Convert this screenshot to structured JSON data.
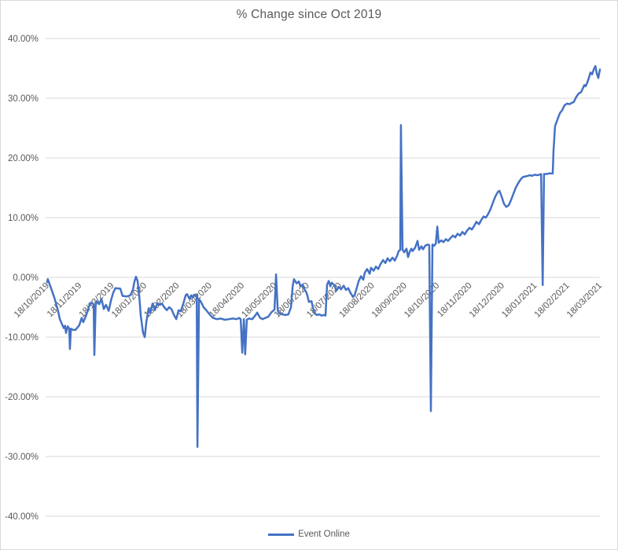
{
  "chart_data": {
    "type": "line",
    "title": "% Change since Oct 2019",
    "legend_position": "bottom",
    "grid": true,
    "colors": {
      "accent": "#4472C4",
      "gridline": "#D9D9D9",
      "text": "#595959",
      "border": "#D9D9D9"
    },
    "y_axis": {
      "min": -40,
      "max": 40,
      "ticks": [
        {
          "value": 40,
          "label": "40.00%"
        },
        {
          "value": 30,
          "label": "30.00%"
        },
        {
          "value": 20,
          "label": "20.00%"
        },
        {
          "value": 10,
          "label": "10.00%"
        },
        {
          "value": 0,
          "label": "0.00%"
        },
        {
          "value": -10,
          "label": "-10.00%"
        },
        {
          "value": -20,
          "label": "-20.00%"
        },
        {
          "value": -30,
          "label": "-30.00%"
        },
        {
          "value": -40,
          "label": "-40.00%"
        }
      ]
    },
    "x_axis": {
      "unit": "months since 18/10/2019",
      "labels": [
        "18/10/2019",
        "18/11/2019",
        "18/12/2019",
        "18/01/2020",
        "18/02/2020",
        "18/03/2020",
        "18/04/2020",
        "18/05/2020",
        "18/06/2020",
        "18/07/2020",
        "18/08/2020",
        "18/09/2020",
        "18/10/2020",
        "18/11/2020",
        "18/12/2020",
        "18/01/2021",
        "18/02/2021",
        "18/03/2021"
      ]
    },
    "series": [
      {
        "name": "Event Online",
        "color": "#4472C4",
        "points": [
          [
            0.0,
            -0.8
          ],
          [
            0.02,
            -0.3
          ],
          [
            0.1,
            -1.5
          ],
          [
            0.22,
            -3.4
          ],
          [
            0.33,
            -5.5
          ],
          [
            0.39,
            -7.0
          ],
          [
            0.51,
            -8.5
          ],
          [
            0.55,
            -8.1
          ],
          [
            0.58,
            -9.3
          ],
          [
            0.63,
            -8.2
          ],
          [
            0.68,
            -8.6
          ],
          [
            0.7,
            -12.0
          ],
          [
            0.73,
            -8.6
          ],
          [
            0.8,
            -8.8
          ],
          [
            0.87,
            -8.8
          ],
          [
            0.99,
            -8.0
          ],
          [
            1.06,
            -6.8
          ],
          [
            1.11,
            -7.5
          ],
          [
            1.19,
            -6.5
          ],
          [
            1.28,
            -5.0
          ],
          [
            1.35,
            -4.2
          ],
          [
            1.43,
            -4.5
          ],
          [
            1.45,
            -13.0
          ],
          [
            1.49,
            -4.8
          ],
          [
            1.52,
            -4.0
          ],
          [
            1.6,
            -4.5
          ],
          [
            1.67,
            -3.6
          ],
          [
            1.74,
            -5.3
          ],
          [
            1.81,
            -4.6
          ],
          [
            1.89,
            -5.6
          ],
          [
            1.96,
            -3.9
          ],
          [
            2.03,
            -2.6
          ],
          [
            2.1,
            -1.8
          ],
          [
            2.25,
            -1.9
          ],
          [
            2.32,
            -3.1
          ],
          [
            2.44,
            -3.2
          ],
          [
            2.56,
            -3.0
          ],
          [
            2.64,
            -2.0
          ],
          [
            2.68,
            -0.8
          ],
          [
            2.73,
            0.1
          ],
          [
            2.78,
            -0.6
          ],
          [
            2.83,
            -3.0
          ],
          [
            2.88,
            -6.5
          ],
          [
            2.95,
            -9.3
          ],
          [
            3.0,
            -10.0
          ],
          [
            3.05,
            -7.5
          ],
          [
            3.12,
            -5.2
          ],
          [
            3.17,
            -6.0
          ],
          [
            3.24,
            -4.4
          ],
          [
            3.31,
            -5.5
          ],
          [
            3.39,
            -4.3
          ],
          [
            3.46,
            -4.6
          ],
          [
            3.53,
            -4.4
          ],
          [
            3.6,
            -5.0
          ],
          [
            3.68,
            -5.5
          ],
          [
            3.75,
            -5.0
          ],
          [
            3.82,
            -5.3
          ],
          [
            3.89,
            -6.2
          ],
          [
            3.97,
            -7.0
          ],
          [
            4.04,
            -5.5
          ],
          [
            4.11,
            -5.7
          ],
          [
            4.18,
            -4.5
          ],
          [
            4.26,
            -3.0
          ],
          [
            4.3,
            -2.8
          ],
          [
            4.38,
            -3.6
          ],
          [
            4.43,
            -3.0
          ],
          [
            4.47,
            -3.4
          ],
          [
            4.52,
            -2.9
          ],
          [
            4.57,
            -3.2
          ],
          [
            4.6,
            -3.0
          ],
          [
            4.62,
            -28.4
          ],
          [
            4.67,
            -3.6
          ],
          [
            4.74,
            -4.2
          ],
          [
            4.81,
            -5.0
          ],
          [
            4.91,
            -5.6
          ],
          [
            5.01,
            -6.3
          ],
          [
            5.1,
            -6.8
          ],
          [
            5.22,
            -7.0
          ],
          [
            5.34,
            -6.9
          ],
          [
            5.47,
            -7.1
          ],
          [
            5.59,
            -7.0
          ],
          [
            5.71,
            -6.9
          ],
          [
            5.83,
            -7.0
          ],
          [
            5.9,
            -6.8
          ],
          [
            5.95,
            -7.0
          ],
          [
            6.0,
            -12.6
          ],
          [
            6.05,
            -7.0
          ],
          [
            6.09,
            -12.9
          ],
          [
            6.14,
            -7.1
          ],
          [
            6.21,
            -6.9
          ],
          [
            6.31,
            -7.0
          ],
          [
            6.41,
            -6.3
          ],
          [
            6.46,
            -5.9
          ],
          [
            6.51,
            -6.4
          ],
          [
            6.55,
            -6.8
          ],
          [
            6.63,
            -7.0
          ],
          [
            6.7,
            -6.8
          ],
          [
            6.8,
            -6.6
          ],
          [
            6.89,
            -5.9
          ],
          [
            6.99,
            -5.4
          ],
          [
            7.04,
            0.5
          ],
          [
            7.09,
            -5.5
          ],
          [
            7.13,
            -6.0
          ],
          [
            7.23,
            -6.2
          ],
          [
            7.33,
            -6.3
          ],
          [
            7.42,
            -6.2
          ],
          [
            7.5,
            -5.0
          ],
          [
            7.55,
            -1.5
          ],
          [
            7.59,
            -0.3
          ],
          [
            7.67,
            -1.0
          ],
          [
            7.74,
            -0.7
          ],
          [
            7.79,
            -1.5
          ],
          [
            7.86,
            -1.2
          ],
          [
            7.91,
            -2.0
          ],
          [
            7.96,
            -2.4
          ],
          [
            8.0,
            -3.0
          ],
          [
            8.05,
            -4.1
          ],
          [
            8.13,
            -4.0
          ],
          [
            8.17,
            -5.0
          ],
          [
            8.22,
            -6.0
          ],
          [
            8.29,
            -6.3
          ],
          [
            8.37,
            -6.2
          ],
          [
            8.44,
            -6.4
          ],
          [
            8.51,
            -6.3
          ],
          [
            8.56,
            -6.4
          ],
          [
            8.61,
            -1.2
          ],
          [
            8.66,
            -0.6
          ],
          [
            8.71,
            -1.5
          ],
          [
            8.75,
            -0.9
          ],
          [
            8.83,
            -1.3
          ],
          [
            8.9,
            -2.2
          ],
          [
            8.97,
            -1.6
          ],
          [
            9.04,
            -2.0
          ],
          [
            9.12,
            -1.4
          ],
          [
            9.19,
            -2.1
          ],
          [
            9.26,
            -1.8
          ],
          [
            9.33,
            -2.6
          ],
          [
            9.41,
            -3.3
          ],
          [
            9.46,
            -2.9
          ],
          [
            9.53,
            -1.6
          ],
          [
            9.58,
            -0.6
          ],
          [
            9.65,
            0.2
          ],
          [
            9.72,
            -0.4
          ],
          [
            9.77,
            0.8
          ],
          [
            9.84,
            1.4
          ],
          [
            9.92,
            0.6
          ],
          [
            9.96,
            1.6
          ],
          [
            10.04,
            1.1
          ],
          [
            10.11,
            1.8
          ],
          [
            10.18,
            1.4
          ],
          [
            10.25,
            2.2
          ],
          [
            10.33,
            2.9
          ],
          [
            10.4,
            2.4
          ],
          [
            10.47,
            3.2
          ],
          [
            10.54,
            2.7
          ],
          [
            10.62,
            3.3
          ],
          [
            10.69,
            2.8
          ],
          [
            10.76,
            3.6
          ],
          [
            10.81,
            4.4
          ],
          [
            10.86,
            4.6
          ],
          [
            10.88,
            25.5
          ],
          [
            10.93,
            4.6
          ],
          [
            10.98,
            4.2
          ],
          [
            11.05,
            4.8
          ],
          [
            11.1,
            3.4
          ],
          [
            11.15,
            4.3
          ],
          [
            11.2,
            4.8
          ],
          [
            11.24,
            4.4
          ],
          [
            11.32,
            5.0
          ],
          [
            11.39,
            6.1
          ],
          [
            11.44,
            4.6
          ],
          [
            11.51,
            5.2
          ],
          [
            11.56,
            4.7
          ],
          [
            11.63,
            5.3
          ],
          [
            11.71,
            5.5
          ],
          [
            11.75,
            5.4
          ],
          [
            11.8,
            -22.4
          ],
          [
            11.85,
            5.5
          ],
          [
            11.9,
            5.3
          ],
          [
            11.95,
            5.6
          ],
          [
            12.0,
            8.5
          ],
          [
            12.04,
            5.8
          ],
          [
            12.12,
            6.2
          ],
          [
            12.19,
            5.9
          ],
          [
            12.26,
            6.4
          ],
          [
            12.33,
            6.1
          ],
          [
            12.41,
            6.6
          ],
          [
            12.48,
            7.0
          ],
          [
            12.55,
            6.7
          ],
          [
            12.62,
            7.3
          ],
          [
            12.7,
            7.0
          ],
          [
            12.77,
            7.6
          ],
          [
            12.84,
            7.2
          ],
          [
            12.91,
            7.8
          ],
          [
            12.99,
            8.3
          ],
          [
            13.06,
            8.0
          ],
          [
            13.13,
            8.6
          ],
          [
            13.2,
            9.3
          ],
          [
            13.28,
            8.9
          ],
          [
            13.35,
            9.6
          ],
          [
            13.42,
            10.2
          ],
          [
            13.49,
            10.0
          ],
          [
            13.57,
            10.7
          ],
          [
            13.64,
            11.5
          ],
          [
            13.71,
            12.5
          ],
          [
            13.78,
            13.5
          ],
          [
            13.86,
            14.3
          ],
          [
            13.91,
            14.5
          ],
          [
            13.98,
            13.5
          ],
          [
            14.05,
            12.3
          ],
          [
            14.12,
            11.8
          ],
          [
            14.2,
            12.1
          ],
          [
            14.27,
            13.0
          ],
          [
            14.34,
            14.0
          ],
          [
            14.41,
            15.0
          ],
          [
            14.49,
            15.8
          ],
          [
            14.56,
            16.4
          ],
          [
            14.63,
            16.8
          ],
          [
            14.7,
            16.9
          ],
          [
            14.78,
            17.0
          ],
          [
            14.85,
            17.1
          ],
          [
            14.92,
            17.0
          ],
          [
            14.99,
            17.2
          ],
          [
            15.07,
            17.1
          ],
          [
            15.14,
            17.2
          ],
          [
            15.19,
            17.3
          ],
          [
            15.24,
            -1.3
          ],
          [
            15.28,
            17.3
          ],
          [
            15.36,
            17.3
          ],
          [
            15.43,
            17.4
          ],
          [
            15.5,
            17.4
          ],
          [
            15.55,
            17.4
          ],
          [
            15.57,
            21.0
          ],
          [
            15.62,
            25.3
          ],
          [
            15.7,
            26.5
          ],
          [
            15.77,
            27.5
          ],
          [
            15.84,
            28.0
          ],
          [
            15.91,
            28.8
          ],
          [
            15.99,
            29.1
          ],
          [
            16.06,
            29.0
          ],
          [
            16.13,
            29.2
          ],
          [
            16.2,
            29.4
          ],
          [
            16.27,
            30.2
          ],
          [
            16.35,
            30.8
          ],
          [
            16.42,
            31.0
          ],
          [
            16.47,
            31.6
          ],
          [
            16.52,
            32.2
          ],
          [
            16.56,
            32.0
          ],
          [
            16.61,
            32.6
          ],
          [
            16.66,
            33.4
          ],
          [
            16.71,
            34.3
          ],
          [
            16.76,
            34.0
          ],
          [
            16.81,
            34.8
          ],
          [
            16.86,
            35.4
          ],
          [
            16.9,
            34.2
          ],
          [
            16.95,
            33.4
          ],
          [
            17.0,
            34.8
          ]
        ]
      }
    ]
  }
}
